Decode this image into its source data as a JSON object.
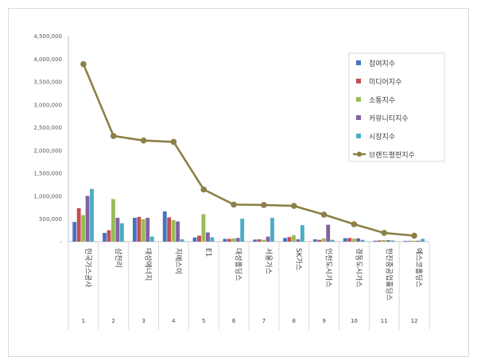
{
  "chart_data": {
    "type": "bar",
    "title": "",
    "xlabel": "",
    "ylabel": "",
    "ylim": [
      0,
      4500000
    ],
    "y_ticks": [
      "-",
      "500,000",
      "1,000,000",
      "1,500,000",
      "2,000,000",
      "2,500,000",
      "3,000,000",
      "3,500,000",
      "4,000,000",
      "4,500,000"
    ],
    "grid": false,
    "legend_position": "top-right",
    "categories": [
      "한국가스공사",
      "삼천리",
      "대성에너지",
      "지에스이",
      "E1",
      "대성홀딩스",
      "서울가스",
      "SK가스",
      "인천도시가스",
      "경동도시가스",
      "한진중공업홀딩스",
      "예스코홀딩스"
    ],
    "ranks": [
      "1",
      "2",
      "3",
      "4",
      "5",
      "6",
      "7",
      "8",
      "9",
      "10",
      "11",
      "12"
    ],
    "series": [
      {
        "name": "참여지수",
        "kind": "bar",
        "color": "#4472c4",
        "values": [
          430000,
          190000,
          520000,
          660000,
          90000,
          60000,
          45000,
          80000,
          50000,
          75000,
          20000,
          15000
        ]
      },
      {
        "name": "미디어지수",
        "kind": "bar",
        "color": "#c0504d",
        "values": [
          730000,
          250000,
          540000,
          530000,
          130000,
          60000,
          50000,
          100000,
          40000,
          80000,
          25000,
          15000
        ]
      },
      {
        "name": "소통지수",
        "kind": "bar",
        "color": "#9bbb59",
        "values": [
          580000,
          930000,
          490000,
          470000,
          600000,
          70000,
          40000,
          140000,
          70000,
          65000,
          35000,
          20000
        ]
      },
      {
        "name": "커뮤니티지수",
        "kind": "bar",
        "color": "#8064a2",
        "values": [
          1000000,
          520000,
          520000,
          440000,
          200000,
          80000,
          110000,
          50000,
          370000,
          70000,
          30000,
          20000
        ]
      },
      {
        "name": "시장지수",
        "kind": "bar",
        "color": "#4bacc6",
        "values": [
          1150000,
          400000,
          110000,
          50000,
          95000,
          500000,
          520000,
          360000,
          40000,
          40000,
          25000,
          60000
        ]
      },
      {
        "name": "브랜드평판지수",
        "kind": "line",
        "color": "#8c8046",
        "values": [
          3880000,
          2310000,
          2210000,
          2180000,
          1140000,
          810000,
          800000,
          780000,
          590000,
          380000,
          190000,
          130000
        ]
      }
    ]
  }
}
